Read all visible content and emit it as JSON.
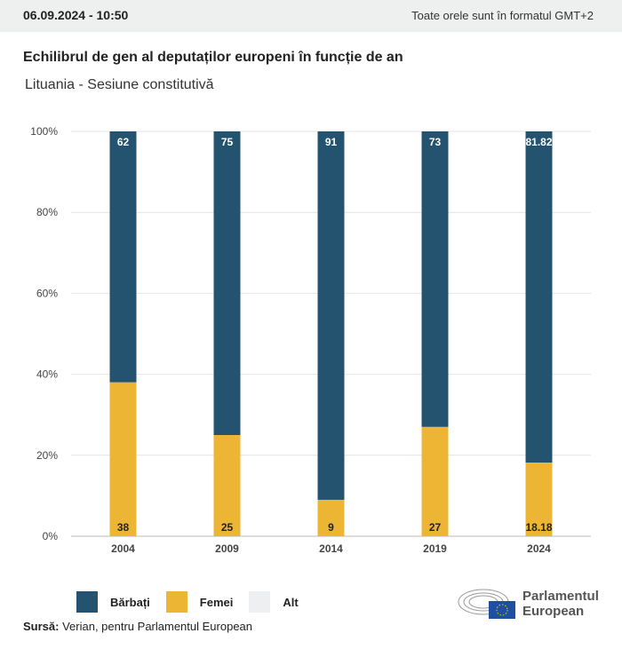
{
  "header": {
    "date": "06.09.2024 - 10:50",
    "timezone": "Toate orele sunt în formatul GMT+2"
  },
  "title": "Echilibrul de gen al deputaților europeni în funcție de an",
  "subtitle": "Lituania - Sesiune constitutivă",
  "chart_data": {
    "type": "bar",
    "stacked": true,
    "categories": [
      "2004",
      "2009",
      "2014",
      "2019",
      "2024"
    ],
    "series": [
      {
        "name": "Bărbați",
        "color": "#24536f",
        "values": [
          62,
          75,
          91,
          73,
          81.82
        ],
        "labels": [
          "62",
          "75",
          "91",
          "73",
          "81.82"
        ]
      },
      {
        "name": "Femei",
        "color": "#edb534",
        "values": [
          38,
          25,
          9,
          27,
          18.18
        ],
        "labels": [
          "38",
          "25",
          "9",
          "27",
          "18.18"
        ]
      },
      {
        "name": "Alt",
        "color": "#eeeff0",
        "values": [
          0,
          0,
          0,
          0,
          0
        ]
      }
    ],
    "yticks": [
      "0%",
      "20%",
      "40%",
      "60%",
      "80%",
      "100%"
    ],
    "ylim": [
      0,
      100
    ],
    "grid": true,
    "legend": "bottom-left"
  },
  "source": {
    "label": "Sursă:",
    "text": "Verian, pentru Parlamentul European"
  },
  "logo": {
    "line1": "Parlamentul",
    "line2": "European"
  }
}
